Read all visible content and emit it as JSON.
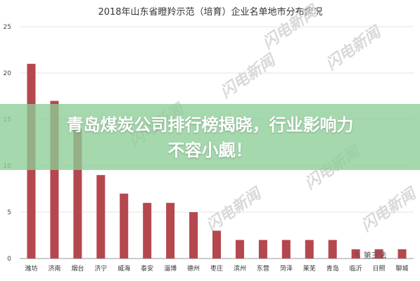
{
  "chart_data": {
    "type": "bar",
    "title": "2018年山东省瞪羚示范（培育）企业名单地市分布情况",
    "categories": [
      "潍坊",
      "济南",
      "烟台",
      "济宁",
      "威海",
      "泰安",
      "淄博",
      "德州",
      "枣庄",
      "滨州",
      "东营",
      "菏泽",
      "莱芜",
      "青岛",
      "临沂",
      "日照",
      "聊城"
    ],
    "values": [
      21,
      17,
      14,
      9,
      7,
      6,
      6,
      5,
      3,
      2,
      2,
      2,
      2,
      2,
      1,
      1,
      1
    ],
    "yticks": [
      "0",
      "5",
      "10",
      "15",
      "20",
      "25"
    ],
    "ylim": [
      0,
      25
    ],
    "grid": true,
    "bar_color": "#b5474f"
  },
  "watermark": "闪电新闻",
  "banner": {
    "line1": "青岛煤炭公司排行榜揭晓，行业影响力",
    "line2": "不容小觑！"
  },
  "logo": "✎ 第三法"
}
